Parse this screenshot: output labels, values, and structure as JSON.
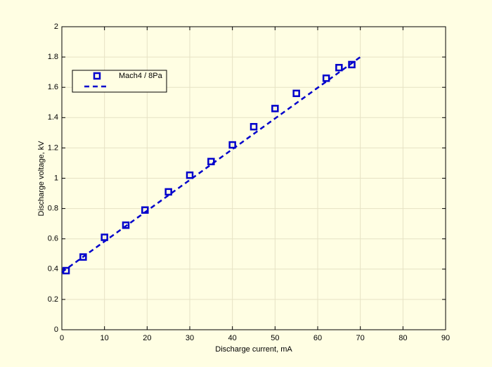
{
  "chart_data": {
    "type": "scatter",
    "xlabel": "Discharge current, mA",
    "ylabel": "Discharge voltage, kV",
    "xlim": [
      0,
      90
    ],
    "ylim": [
      0,
      2
    ],
    "xticks": [
      0,
      10,
      20,
      30,
      40,
      50,
      60,
      70,
      80,
      90
    ],
    "yticks": [
      0,
      0.2,
      0.4,
      0.6,
      0.8,
      1,
      1.2,
      1.4,
      1.6,
      1.8,
      2
    ],
    "grid": true,
    "legend": "upper left",
    "series": [
      {
        "name": "Mach4 / 8Pa",
        "color": "#0000cc",
        "marker": "square",
        "x": [
          1,
          5,
          10,
          15,
          19.5,
          25,
          30,
          35,
          40,
          45,
          50,
          55,
          62,
          65,
          68
        ],
        "values": [
          0.39,
          0.48,
          0.61,
          0.69,
          0.79,
          0.91,
          1.02,
          1.11,
          1.22,
          1.34,
          1.46,
          1.56,
          1.66,
          1.73,
          1.75
        ]
      },
      {
        "color": "#0000cc",
        "linestyle": "dashed",
        "x": [
          0,
          70
        ],
        "values": [
          0.38,
          1.8
        ]
      }
    ]
  }
}
